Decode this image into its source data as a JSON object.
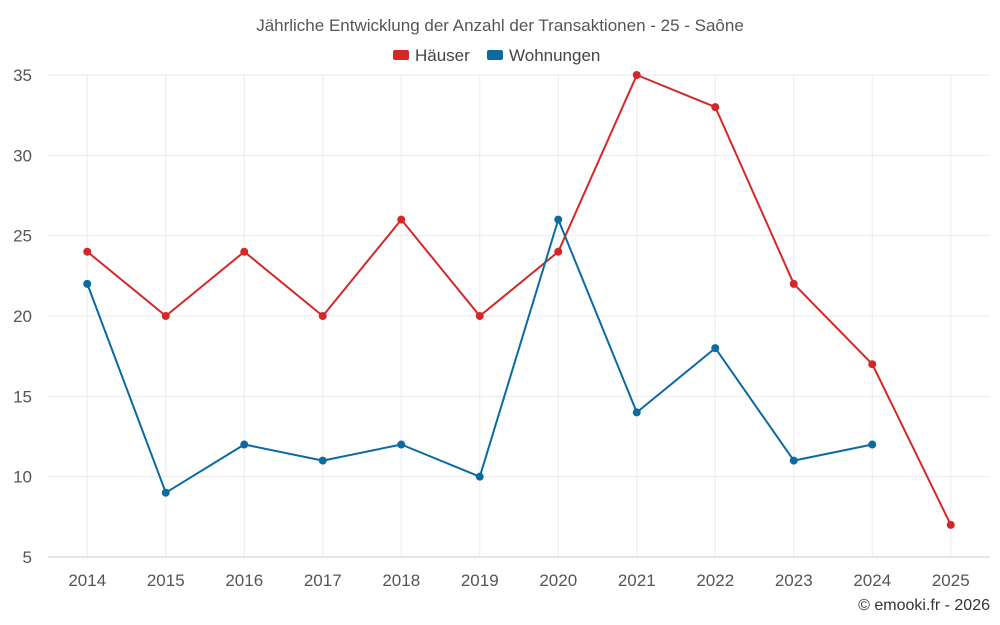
{
  "chart_data": {
    "type": "line",
    "title": "Jährliche Entwicklung der Anzahl der Transaktionen - 25 - Saône",
    "categories": [
      "2014",
      "2015",
      "2016",
      "2017",
      "2018",
      "2019",
      "2020",
      "2021",
      "2022",
      "2023",
      "2024",
      "2025"
    ],
    "series": [
      {
        "name": "Häuser",
        "color": "#d62728",
        "values": [
          24,
          20,
          24,
          20,
          26,
          20,
          24,
          35,
          33,
          22,
          17,
          7
        ]
      },
      {
        "name": "Wohnungen",
        "color": "#0b6aa2",
        "values": [
          22,
          9,
          12,
          11,
          12,
          10,
          26,
          14,
          18,
          11,
          12,
          null
        ]
      }
    ],
    "y_ticks": [
      5,
      10,
      15,
      20,
      25,
      30,
      35
    ],
    "ylim": [
      5,
      35
    ],
    "xlabel": "",
    "ylabel": "",
    "grid": true,
    "legend_position": "top-center"
  },
  "credit": "© emooki.fr - 2026"
}
